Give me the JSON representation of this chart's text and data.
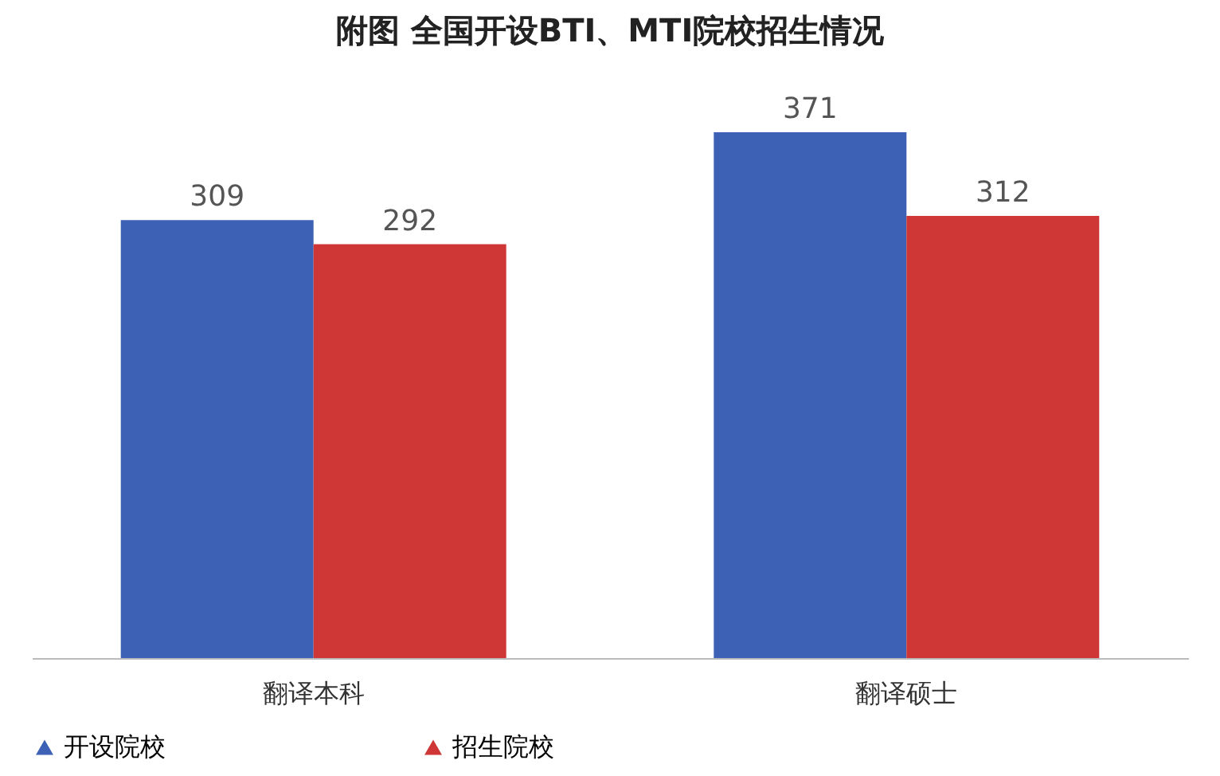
{
  "chart_data": {
    "type": "bar",
    "title": "附图    全国开设BTI、MTI院校招生情况",
    "categories": [
      "翻译本科",
      "翻译硕士"
    ],
    "series": [
      {
        "name": "开设院校",
        "color": "#3359b0",
        "values": [
          309,
          371
        ]
      },
      {
        "name": "招生院校",
        "color": "#cc2b2b",
        "values": [
          292,
          312
        ]
      }
    ],
    "data_labels": true,
    "legend": "bottom",
    "grid": false
  }
}
